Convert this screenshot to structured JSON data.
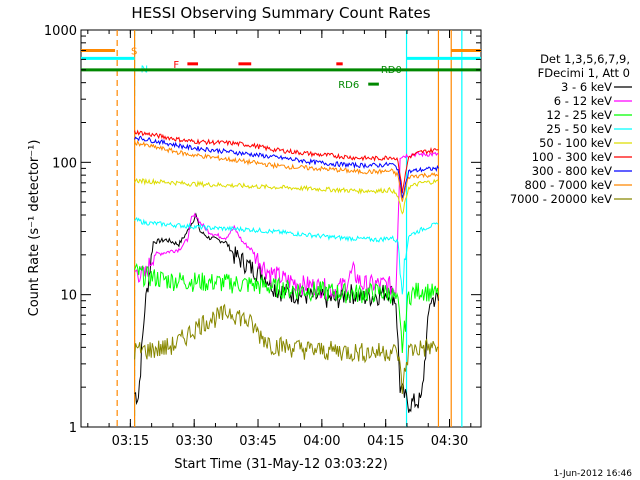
{
  "chart_data": {
    "type": "line",
    "title": "HESSI Observing Summary Count Rates",
    "xlabel": "Start Time (31-May-12 03:03:22)",
    "ylabel": "Count Rate (s⁻¹ detector⁻¹)",
    "x_unit": "minutes from 03:03:22",
    "xlim": [
      0,
      94
    ],
    "ylim": [
      1,
      1000
    ],
    "yscale": "log",
    "x_ticks": [
      "03:15",
      "03:30",
      "03:45",
      "04:00",
      "04:15",
      "04:30"
    ],
    "x_tick_values": [
      11.6,
      26.6,
      41.6,
      56.6,
      71.6,
      86.6
    ],
    "y_ticks": [
      "1",
      "10",
      "100",
      "1000"
    ],
    "y_tick_values": [
      1,
      10,
      100,
      1000
    ],
    "legend_position": "right",
    "legend_header": [
      "Det 1,3,5,6,7,9,",
      "FDecimi 1, Att 0"
    ],
    "footer": "1-Jun-2012 16:46",
    "data_gaps_minutes": [
      [
        0,
        12.6
      ],
      [
        84,
        94
      ]
    ],
    "series": [
      {
        "name": "3 - 6 keV",
        "color": "#000000",
        "x": [
          12.6,
          13.5,
          15,
          17,
          20,
          23,
          25,
          27,
          28,
          30,
          32,
          34,
          36,
          38,
          40,
          42,
          44,
          46,
          48,
          52,
          56,
          60,
          63,
          66,
          70,
          72.5,
          74,
          75,
          77,
          80,
          82,
          83.5,
          84
        ],
        "y": [
          1.8,
          1.7,
          8,
          25,
          26,
          24,
          30,
          40,
          30,
          27,
          26,
          25,
          20,
          18,
          16,
          15,
          13,
          11,
          10.5,
          10,
          9.5,
          9.2,
          10.5,
          9.5,
          10,
          11,
          9,
          2,
          1.5,
          1.6,
          9,
          9.5,
          9
        ]
      },
      {
        "name": "6 - 12 keV",
        "color": "#ff00ff",
        "x": [
          12.6,
          15,
          17,
          20,
          23,
          25,
          26,
          27,
          28,
          30,
          32,
          34,
          36,
          38,
          40,
          42,
          44,
          46,
          48,
          52,
          56,
          60,
          62,
          64,
          66,
          70,
          72,
          74,
          75,
          76,
          78,
          80,
          82,
          84
        ],
        "y": [
          15,
          14,
          20,
          21,
          22,
          26,
          38,
          40,
          35,
          30,
          28,
          27,
          32,
          25,
          22,
          18,
          15,
          14,
          13,
          12,
          11.5,
          11,
          12,
          15,
          12,
          12,
          12,
          11,
          110,
          112,
          115,
          115,
          115,
          115
        ]
      },
      {
        "name": "12 - 25 keV",
        "color": "#00ff00",
        "x": [
          12.6,
          15,
          20,
          25,
          30,
          35,
          40,
          45,
          50,
          55,
          60,
          65,
          70,
          73,
          74.5,
          75.5,
          77,
          80,
          82,
          84
        ],
        "y": [
          15,
          14,
          13,
          12.8,
          12.5,
          12.3,
          12,
          11.5,
          11,
          10.8,
          10.5,
          10.3,
          10.5,
          10.3,
          8.5,
          4,
          10,
          11,
          10.5,
          10
        ]
      },
      {
        "name": "25 - 50 keV",
        "color": "#00ffff",
        "x": [
          12.6,
          15,
          20,
          25,
          30,
          35,
          40,
          45,
          50,
          55,
          60,
          65,
          70,
          73,
          74.5,
          75.5,
          77,
          80,
          82,
          84
        ],
        "y": [
          37,
          35,
          34,
          33,
          32,
          31.5,
          31,
          30,
          29,
          28,
          27,
          26.5,
          26,
          27,
          25,
          12,
          28,
          31,
          33,
          34
        ]
      },
      {
        "name": "50 - 100 keV",
        "color": "#dddd00",
        "x": [
          12.6,
          15,
          20,
          25,
          30,
          35,
          40,
          45,
          50,
          55,
          60,
          65,
          70,
          73,
          74.5,
          75.5,
          77,
          80,
          82,
          84
        ],
        "y": [
          73,
          72,
          71,
          69,
          68,
          67,
          66,
          65,
          64,
          63,
          62,
          61,
          61,
          62,
          55,
          40,
          65,
          70,
          71,
          72
        ]
      },
      {
        "name": "100 - 300 keV",
        "color": "#ff0000",
        "x": [
          12.6,
          15,
          20,
          25,
          30,
          35,
          40,
          45,
          50,
          55,
          60,
          65,
          70,
          73,
          74.5,
          75.5,
          77,
          80,
          82,
          84
        ],
        "y": [
          170,
          165,
          155,
          145,
          142,
          140,
          135,
          125,
          120,
          115,
          112,
          108,
          107,
          110,
          105,
          60,
          110,
          120,
          122,
          125
        ]
      },
      {
        "name": "300 - 800 keV",
        "color": "#0000ff",
        "x": [
          12.6,
          15,
          20,
          25,
          30,
          35,
          40,
          45,
          50,
          55,
          60,
          65,
          70,
          73,
          74.5,
          75.5,
          77,
          80,
          82,
          84
        ],
        "y": [
          155,
          150,
          140,
          130,
          125,
          120,
          115,
          110,
          105,
          100,
          97,
          95,
          95,
          97,
          90,
          55,
          85,
          88,
          89,
          90
        ]
      },
      {
        "name": "800 - 7000 keV",
        "color": "#ff8800",
        "x": [
          12.6,
          15,
          20,
          25,
          30,
          35,
          40,
          45,
          50,
          55,
          60,
          65,
          70,
          73,
          74.5,
          75.5,
          77,
          80,
          82,
          84
        ],
        "y": [
          142,
          135,
          125,
          115,
          110,
          105,
          100,
          95,
          92,
          90,
          88,
          85,
          85,
          86,
          80,
          50,
          78,
          80,
          80,
          80
        ]
      },
      {
        "name": "7000 - 20000 keV",
        "color": "#888800",
        "x": [
          12.6,
          15,
          20,
          22,
          25,
          28,
          30,
          33,
          35,
          37,
          40,
          42,
          45,
          50,
          55,
          60,
          65,
          70,
          73,
          74.5,
          75.5,
          77,
          80,
          82,
          84
        ],
        "y": [
          3.8,
          3.8,
          4,
          4.2,
          5,
          6,
          6.5,
          7,
          7.5,
          7,
          6,
          5,
          4.2,
          4,
          3.8,
          3.8,
          3.7,
          3.7,
          3.8,
          3.6,
          2,
          3.8,
          4,
          4,
          4
        ]
      }
    ],
    "annotations": [
      {
        "label": "S",
        "color": "#ff8800",
        "y_level": 700,
        "segments": [
          [
            0,
            8
          ],
          [
            87,
            94
          ]
        ]
      },
      {
        "label": "N",
        "color": "#00ffff",
        "y_level": 610,
        "segments": [
          [
            0,
            12.6
          ],
          [
            76.5,
            94
          ]
        ]
      },
      {
        "label": "F",
        "color": "#ff0000",
        "y_level": 555,
        "segments": [
          [
            25,
            27.5
          ],
          [
            37,
            40
          ],
          [
            60,
            61.5
          ]
        ]
      },
      {
        "label": "RD0",
        "color": "#008800",
        "y_level": 500,
        "segments": [
          [
            0,
            94
          ]
        ]
      },
      {
        "label": "RD6",
        "color": "#008800",
        "y_level": 390,
        "segments": [
          [
            67.5,
            70
          ]
        ]
      }
    ],
    "vertical_markers": [
      {
        "x": 8.5,
        "color": "#ff8800",
        "style": "dashed"
      },
      {
        "x": 12.6,
        "color": "#00ffff",
        "style": "dashed"
      },
      {
        "x": 12.6,
        "color": "#ff8800",
        "style": "solid"
      },
      {
        "x": 76.5,
        "color": "#00ffff",
        "style": "solid"
      },
      {
        "x": 84,
        "color": "#ff8800",
        "style": "solid"
      },
      {
        "x": 87,
        "color": "#ff8800",
        "style": "solid"
      },
      {
        "x": 89.5,
        "color": "#00ffff",
        "style": "solid"
      }
    ]
  }
}
